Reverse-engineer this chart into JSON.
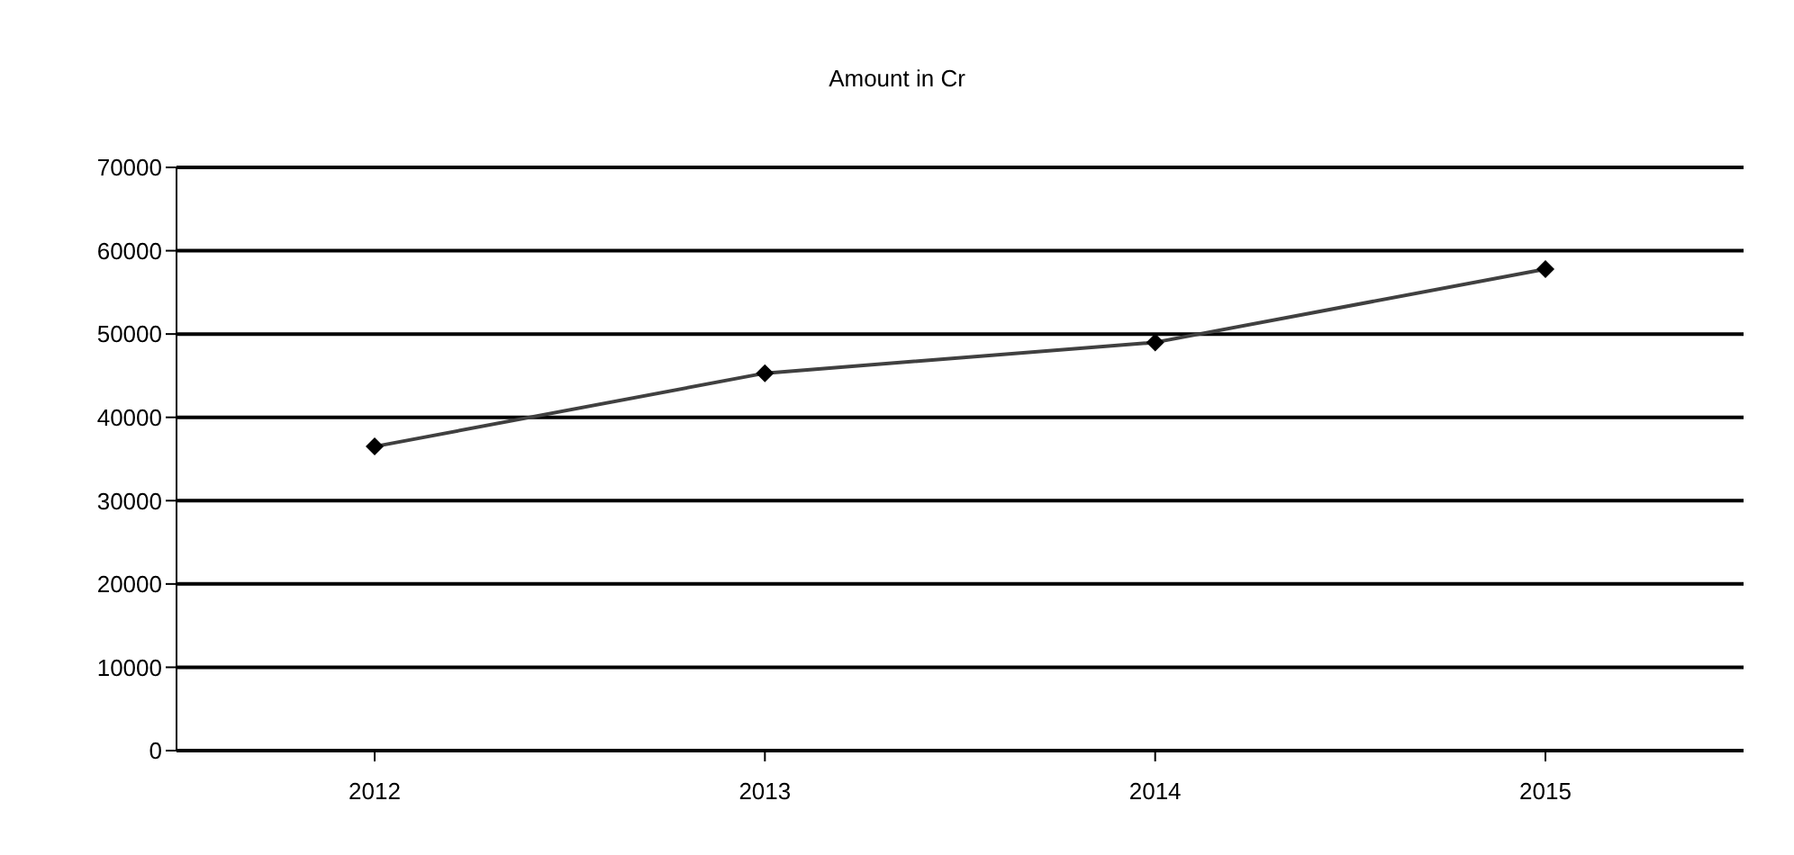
{
  "chart_data": {
    "type": "line",
    "title": "Amount in Cr",
    "categories": [
      "2012",
      "2013",
      "2014",
      "2015"
    ],
    "series": [
      {
        "color": "#404040",
        "values": [
          36500,
          45300,
          49000,
          57800
        ]
      }
    ],
    "ylim": [
      0,
      70000
    ],
    "yticks": [
      0,
      10000,
      20000,
      30000,
      40000,
      50000,
      60000,
      70000
    ],
    "grid": "y",
    "marker": "diamond",
    "line_style": "solid"
  }
}
